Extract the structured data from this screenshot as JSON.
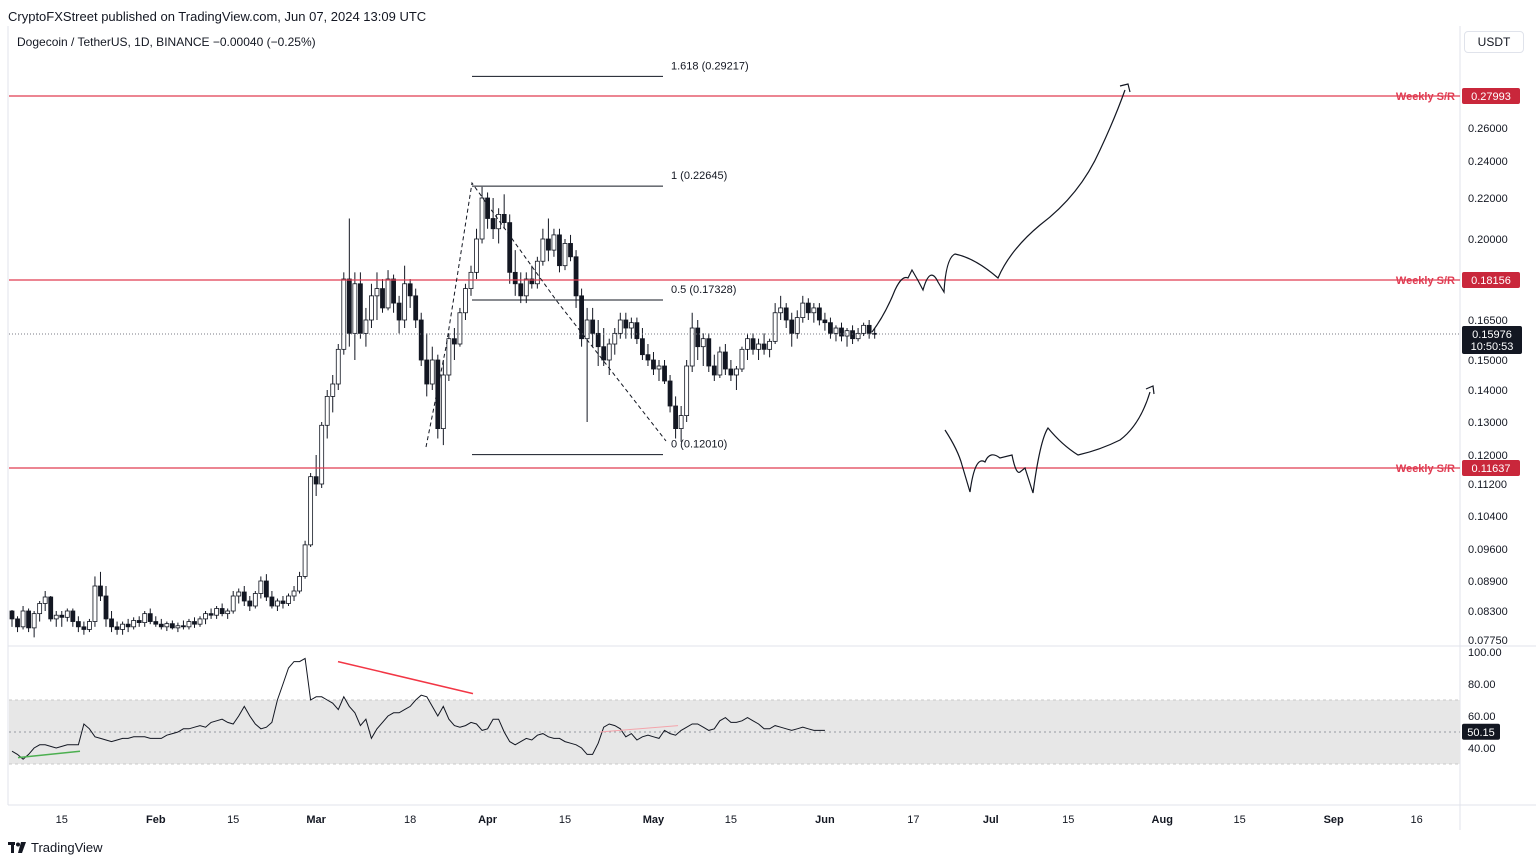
{
  "header": {
    "publisher_line": "CryptoFXStreet published on TradingView.com, Jun 07, 2024 13:09 UTC"
  },
  "legend": {
    "symbol_line": "Dogecoin / TetherUS, 1D, BINANCE  −0.00040 (−0.25%)"
  },
  "currency_button": "USDT",
  "footer": {
    "brand": "TradingView",
    "logo_icon": "tradingview-logo-icon"
  },
  "colors": {
    "up": "#ffffff",
    "down": "#131722",
    "sr_line": "#e03c52",
    "sr_label_bg": "#c9273b",
    "price_label_bg": "#131722",
    "rsi_band": "#e7e7e7",
    "bear_div": "#f23645",
    "bull_div": "#4caf50"
  },
  "chart_data": {
    "type": "candlestick",
    "price_ticks": [
      "0.26000",
      "0.24000",
      "0.22000",
      "0.20000",
      "0.16500",
      "0.15000",
      "0.14000",
      "0.13000",
      "0.12000",
      "0.11200",
      "0.10400",
      "0.09600",
      "0.08900",
      "0.08300",
      "0.07750"
    ],
    "x_ticks": [
      "15",
      "Feb",
      "15",
      "Mar",
      "18",
      "Apr",
      "15",
      "May",
      "15",
      "Jun",
      "17",
      "Jul",
      "15",
      "Aug",
      "15",
      "Sep",
      "16"
    ],
    "x_tick_dates": [
      "2024-01-15",
      "2024-02-01",
      "2024-02-15",
      "2024-03-01",
      "2024-03-18",
      "2024-04-01",
      "2024-04-15",
      "2024-05-01",
      "2024-05-15",
      "2024-06-01",
      "2024-06-17",
      "2024-07-01",
      "2024-07-15",
      "2024-08-01",
      "2024-08-15",
      "2024-09-01",
      "2024-09-16"
    ],
    "support_resistance": [
      {
        "label": "Weekly S/R",
        "value": "0.27993"
      },
      {
        "label": "Weekly S/R",
        "value": "0.18156"
      },
      {
        "label": "Weekly S/R",
        "value": "0.11637"
      }
    ],
    "fibonacci": [
      {
        "label": "1.618 (0.29217)"
      },
      {
        "label": "1 (0.22645)"
      },
      {
        "label": "0.5 (0.17328)"
      },
      {
        "label": "0 (0.12010)"
      }
    ],
    "last_price": "0.15976",
    "countdown": "10:50:53",
    "candles_ohlc": [
      [
        0.083,
        0.0832,
        0.08,
        0.0815
      ],
      [
        0.0815,
        0.082,
        0.079,
        0.08
      ],
      [
        0.08,
        0.084,
        0.0795,
        0.083
      ],
      [
        0.083,
        0.0835,
        0.079,
        0.0798
      ],
      [
        0.0798,
        0.083,
        0.078,
        0.0825
      ],
      [
        0.0825,
        0.085,
        0.081,
        0.0845
      ],
      [
        0.0845,
        0.087,
        0.083,
        0.0858
      ],
      [
        0.0858,
        0.086,
        0.081,
        0.0815
      ],
      [
        0.0815,
        0.083,
        0.08,
        0.0822
      ],
      [
        0.0822,
        0.083,
        0.08,
        0.0818
      ],
      [
        0.0818,
        0.0835,
        0.081,
        0.083
      ],
      [
        0.083,
        0.0835,
        0.08,
        0.081
      ],
      [
        0.081,
        0.082,
        0.079,
        0.08
      ],
      [
        0.08,
        0.081,
        0.0785,
        0.0795
      ],
      [
        0.0795,
        0.0815,
        0.079,
        0.081
      ],
      [
        0.081,
        0.09,
        0.08,
        0.088
      ],
      [
        0.088,
        0.091,
        0.085,
        0.086
      ],
      [
        0.086,
        0.088,
        0.08,
        0.0815
      ],
      [
        0.0815,
        0.083,
        0.079,
        0.08
      ],
      [
        0.08,
        0.081,
        0.0785,
        0.0795
      ],
      [
        0.0795,
        0.081,
        0.0785,
        0.0805
      ],
      [
        0.0805,
        0.0815,
        0.079,
        0.08
      ],
      [
        0.08,
        0.0818,
        0.0795,
        0.0812
      ],
      [
        0.0812,
        0.082,
        0.08,
        0.0808
      ],
      [
        0.0808,
        0.083,
        0.08,
        0.0825
      ],
      [
        0.0825,
        0.0835,
        0.0805,
        0.081
      ],
      [
        0.081,
        0.082,
        0.08,
        0.0805
      ],
      [
        0.0805,
        0.0815,
        0.0795,
        0.08
      ],
      [
        0.08,
        0.081,
        0.0792,
        0.0806
      ],
      [
        0.0806,
        0.0812,
        0.0795,
        0.0798
      ],
      [
        0.0798,
        0.0808,
        0.079,
        0.0802
      ],
      [
        0.0802,
        0.0812,
        0.0795,
        0.08
      ],
      [
        0.08,
        0.0815,
        0.0795,
        0.081
      ],
      [
        0.081,
        0.0818,
        0.0798,
        0.0805
      ],
      [
        0.0805,
        0.082,
        0.08,
        0.0815
      ],
      [
        0.0815,
        0.083,
        0.0805,
        0.0825
      ],
      [
        0.0825,
        0.0835,
        0.0815,
        0.0822
      ],
      [
        0.0822,
        0.084,
        0.0815,
        0.0835
      ],
      [
        0.0835,
        0.0845,
        0.082,
        0.0825
      ],
      [
        0.0825,
        0.0835,
        0.0815,
        0.083
      ],
      [
        0.083,
        0.087,
        0.0825,
        0.086
      ],
      [
        0.086,
        0.0875,
        0.0845,
        0.0868
      ],
      [
        0.0868,
        0.088,
        0.084,
        0.085
      ],
      [
        0.085,
        0.086,
        0.083,
        0.084
      ],
      [
        0.084,
        0.087,
        0.0835,
        0.0865
      ],
      [
        0.0865,
        0.09,
        0.0855,
        0.089
      ],
      [
        0.089,
        0.0905,
        0.085,
        0.0858
      ],
      [
        0.0858,
        0.087,
        0.0835,
        0.084
      ],
      [
        0.084,
        0.0855,
        0.083,
        0.085
      ],
      [
        0.085,
        0.086,
        0.0835,
        0.0845
      ],
      [
        0.0845,
        0.0865,
        0.084,
        0.086
      ],
      [
        0.086,
        0.088,
        0.085,
        0.087
      ],
      [
        0.087,
        0.091,
        0.0865,
        0.09
      ],
      [
        0.09,
        0.098,
        0.0895,
        0.097
      ],
      [
        0.097,
        0.115,
        0.0965,
        0.114
      ],
      [
        0.114,
        0.12,
        0.109,
        0.112
      ],
      [
        0.112,
        0.13,
        0.111,
        0.129
      ],
      [
        0.129,
        0.14,
        0.125,
        0.138
      ],
      [
        0.138,
        0.145,
        0.133,
        0.142
      ],
      [
        0.142,
        0.156,
        0.14,
        0.154
      ],
      [
        0.154,
        0.185,
        0.152,
        0.182
      ],
      [
        0.182,
        0.21,
        0.155,
        0.16
      ],
      [
        0.16,
        0.185,
        0.15,
        0.18
      ],
      [
        0.18,
        0.185,
        0.158,
        0.16
      ],
      [
        0.16,
        0.17,
        0.155,
        0.165
      ],
      [
        0.165,
        0.18,
        0.162,
        0.175
      ],
      [
        0.175,
        0.185,
        0.165,
        0.178
      ],
      [
        0.178,
        0.182,
        0.168,
        0.17
      ],
      [
        0.17,
        0.186,
        0.169,
        0.182
      ],
      [
        0.182,
        0.184,
        0.168,
        0.172
      ],
      [
        0.172,
        0.175,
        0.16,
        0.165
      ],
      [
        0.165,
        0.188,
        0.162,
        0.18
      ],
      [
        0.18,
        0.182,
        0.17,
        0.175
      ],
      [
        0.175,
        0.178,
        0.162,
        0.165
      ],
      [
        0.165,
        0.168,
        0.148,
        0.15
      ],
      [
        0.15,
        0.16,
        0.138,
        0.142
      ],
      [
        0.142,
        0.155,
        0.14,
        0.15
      ],
      [
        0.15,
        0.152,
        0.125,
        0.128
      ],
      [
        0.128,
        0.15,
        0.123,
        0.145
      ],
      [
        0.145,
        0.16,
        0.143,
        0.158
      ],
      [
        0.158,
        0.162,
        0.15,
        0.156
      ],
      [
        0.156,
        0.17,
        0.155,
        0.168
      ],
      [
        0.168,
        0.18,
        0.165,
        0.178
      ],
      [
        0.178,
        0.188,
        0.175,
        0.185
      ],
      [
        0.185,
        0.205,
        0.182,
        0.2
      ],
      [
        0.2,
        0.226,
        0.198,
        0.22
      ],
      [
        0.22,
        0.223,
        0.205,
        0.21
      ],
      [
        0.21,
        0.22,
        0.2,
        0.205
      ],
      [
        0.205,
        0.215,
        0.198,
        0.212
      ],
      [
        0.212,
        0.222,
        0.205,
        0.208
      ],
      [
        0.208,
        0.212,
        0.18,
        0.185
      ],
      [
        0.185,
        0.195,
        0.175,
        0.18
      ],
      [
        0.18,
        0.185,
        0.172,
        0.175
      ],
      [
        0.175,
        0.185,
        0.172,
        0.182
      ],
      [
        0.182,
        0.188,
        0.178,
        0.18
      ],
      [
        0.18,
        0.192,
        0.178,
        0.19
      ],
      [
        0.19,
        0.205,
        0.188,
        0.2
      ],
      [
        0.2,
        0.21,
        0.19,
        0.195
      ],
      [
        0.195,
        0.205,
        0.192,
        0.202
      ],
      [
        0.202,
        0.205,
        0.185,
        0.188
      ],
      [
        0.188,
        0.2,
        0.186,
        0.198
      ],
      [
        0.198,
        0.202,
        0.19,
        0.192
      ],
      [
        0.192,
        0.195,
        0.17,
        0.175
      ],
      [
        0.175,
        0.178,
        0.155,
        0.158
      ],
      [
        0.158,
        0.17,
        0.13,
        0.165
      ],
      [
        0.165,
        0.17,
        0.155,
        0.16
      ],
      [
        0.16,
        0.165,
        0.148,
        0.155
      ],
      [
        0.155,
        0.162,
        0.148,
        0.15
      ],
      [
        0.15,
        0.158,
        0.145,
        0.156
      ],
      [
        0.156,
        0.162,
        0.152,
        0.16
      ],
      [
        0.16,
        0.168,
        0.158,
        0.165
      ],
      [
        0.165,
        0.168,
        0.158,
        0.162
      ],
      [
        0.162,
        0.166,
        0.158,
        0.164
      ],
      [
        0.164,
        0.166,
        0.156,
        0.158
      ],
      [
        0.158,
        0.162,
        0.15,
        0.152
      ],
      [
        0.152,
        0.156,
        0.148,
        0.15
      ],
      [
        0.15,
        0.153,
        0.145,
        0.147
      ],
      [
        0.147,
        0.15,
        0.143,
        0.148
      ],
      [
        0.148,
        0.15,
        0.142,
        0.143
      ],
      [
        0.143,
        0.145,
        0.133,
        0.135
      ],
      [
        0.135,
        0.138,
        0.125,
        0.128
      ],
      [
        0.128,
        0.135,
        0.124,
        0.132
      ],
      [
        0.132,
        0.15,
        0.13,
        0.148
      ],
      [
        0.148,
        0.168,
        0.146,
        0.162
      ],
      [
        0.162,
        0.165,
        0.15,
        0.155
      ],
      [
        0.155,
        0.16,
        0.148,
        0.158
      ],
      [
        0.158,
        0.16,
        0.146,
        0.148
      ],
      [
        0.148,
        0.152,
        0.143,
        0.145
      ],
      [
        0.145,
        0.155,
        0.144,
        0.153
      ],
      [
        0.153,
        0.156,
        0.145,
        0.147
      ],
      [
        0.147,
        0.15,
        0.143,
        0.145
      ],
      [
        0.145,
        0.148,
        0.14,
        0.147
      ],
      [
        0.147,
        0.155,
        0.146,
        0.154
      ],
      [
        0.154,
        0.16,
        0.15,
        0.158
      ],
      [
        0.158,
        0.16,
        0.152,
        0.154
      ],
      [
        0.154,
        0.158,
        0.15,
        0.156
      ],
      [
        0.156,
        0.16,
        0.152,
        0.154
      ],
      [
        0.154,
        0.158,
        0.151,
        0.157
      ],
      [
        0.157,
        0.172,
        0.156,
        0.168
      ],
      [
        0.168,
        0.175,
        0.165,
        0.17
      ],
      [
        0.17,
        0.172,
        0.162,
        0.165
      ],
      [
        0.165,
        0.168,
        0.155,
        0.16
      ],
      [
        0.16,
        0.169,
        0.158,
        0.166
      ],
      [
        0.166,
        0.175,
        0.164,
        0.172
      ],
      [
        0.172,
        0.174,
        0.165,
        0.168
      ],
      [
        0.168,
        0.172,
        0.164,
        0.17
      ],
      [
        0.17,
        0.172,
        0.163,
        0.165
      ],
      [
        0.165,
        0.168,
        0.161,
        0.164
      ],
      [
        0.164,
        0.166,
        0.158,
        0.16
      ],
      [
        0.16,
        0.163,
        0.157,
        0.162
      ],
      [
        0.162,
        0.164,
        0.157,
        0.159
      ],
      [
        0.159,
        0.162,
        0.155,
        0.161
      ],
      [
        0.161,
        0.163,
        0.156,
        0.158
      ],
      [
        0.158,
        0.162,
        0.157,
        0.16
      ],
      [
        0.16,
        0.164,
        0.159,
        0.163
      ],
      [
        0.163,
        0.165,
        0.158,
        0.16
      ],
      [
        0.16,
        0.162,
        0.158,
        0.1598
      ]
    ],
    "rsi": {
      "ticks": [
        "100.00",
        "80.00",
        "60.00",
        "40.00"
      ],
      "last_value": "50.15",
      "band": [
        30,
        70
      ],
      "values": [
        38,
        36,
        33,
        36,
        40,
        42,
        42,
        41,
        40,
        41,
        42,
        42,
        42,
        55,
        52,
        47,
        46,
        45,
        44,
        45,
        46,
        46,
        47,
        47,
        47,
        46,
        46,
        46,
        48,
        49,
        50,
        52,
        52,
        53,
        54,
        53,
        56,
        57,
        58,
        56,
        55,
        60,
        66,
        60,
        55,
        52,
        53,
        56,
        70,
        80,
        90,
        94,
        94,
        96,
        70,
        72,
        72,
        70,
        68,
        64,
        72,
        66,
        62,
        54,
        58,
        46,
        52,
        56,
        60,
        62,
        62,
        64,
        66,
        70,
        73,
        72,
        66,
        60,
        66,
        58,
        54,
        53,
        54,
        56,
        55,
        51,
        52,
        58,
        58,
        50,
        44,
        42,
        44,
        46,
        45,
        48,
        49,
        47,
        46,
        46,
        44,
        43,
        42,
        40,
        36,
        36,
        43,
        53,
        55,
        54,
        52,
        47,
        49,
        45,
        47,
        48,
        47,
        46,
        51,
        49,
        48,
        51,
        53,
        55,
        55,
        53,
        51,
        52,
        57,
        59,
        56,
        56,
        57,
        59,
        57,
        55,
        52,
        52,
        54,
        53,
        52,
        51,
        52,
        53,
        52,
        51,
        51,
        51
      ]
    }
  }
}
